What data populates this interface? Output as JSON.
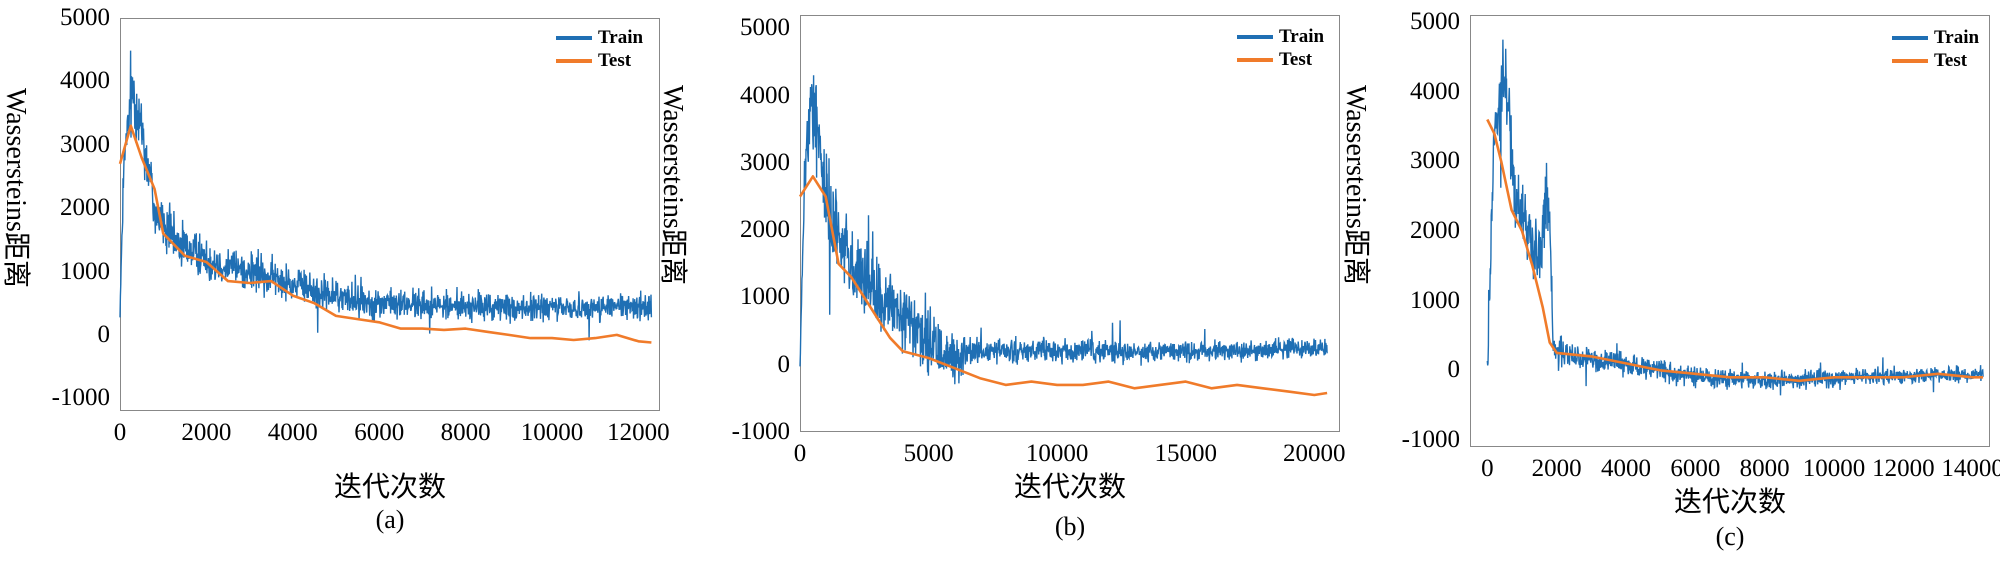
{
  "chart_data": [
    {
      "type": "line",
      "caption": "(a)",
      "xlabel": "迭代次数",
      "ylabel": "Wassersteins距离",
      "xlim": [
        0,
        12500
      ],
      "ylim": [
        -1200,
        5000
      ],
      "xticks": [
        0,
        2000,
        4000,
        6000,
        8000,
        10000,
        12000
      ],
      "yticks": [
        -1000,
        0,
        1000,
        2000,
        3000,
        4000,
        5000
      ],
      "xtick_labels": [
        "0",
        "2000",
        "4000",
        "6000",
        "8000",
        "10000",
        "12000"
      ],
      "ytick_labels": [
        "-1000",
        "0",
        "1000",
        "2000",
        "3000",
        "4000",
        "5000"
      ],
      "legend": "top-right",
      "series": [
        {
          "name": "Train",
          "color": "#1f6fb4",
          "x_end": 12300,
          "mean": [
            [
              0,
              400
            ],
            [
              100,
              2800
            ],
            [
              300,
              3900
            ],
            [
              500,
              3300
            ],
            [
              800,
              2000
            ],
            [
              1200,
              1500
            ],
            [
              2000,
              1200
            ],
            [
              3000,
              1000
            ],
            [
              4000,
              800
            ],
            [
              5000,
              600
            ],
            [
              6000,
              500
            ],
            [
              8000,
              450
            ],
            [
              10000,
              420
            ],
            [
              12300,
              450
            ]
          ],
          "spread": [
            [
              0,
              200
            ],
            [
              300,
              900
            ],
            [
              800,
              700
            ],
            [
              1500,
              500
            ],
            [
              3000,
              450
            ],
            [
              6000,
              350
            ],
            [
              12300,
              300
            ]
          ]
        },
        {
          "name": "Test",
          "color": "#f07b2a",
          "points": [
            [
              0,
              2700
            ],
            [
              250,
              3300
            ],
            [
              500,
              2800
            ],
            [
              800,
              2300
            ],
            [
              1000,
              1600
            ],
            [
              1500,
              1250
            ],
            [
              2000,
              1150
            ],
            [
              2500,
              850
            ],
            [
              3000,
              820
            ],
            [
              3500,
              850
            ],
            [
              4000,
              620
            ],
            [
              4500,
              500
            ],
            [
              5000,
              300
            ],
            [
              5500,
              250
            ],
            [
              6000,
              200
            ],
            [
              6500,
              100
            ],
            [
              7000,
              100
            ],
            [
              7500,
              80
            ],
            [
              8000,
              100
            ],
            [
              8500,
              50
            ],
            [
              9000,
              0
            ],
            [
              9500,
              -50
            ],
            [
              10000,
              -50
            ],
            [
              10500,
              -80
            ],
            [
              11000,
              -50
            ],
            [
              11500,
              0
            ],
            [
              12000,
              -100
            ],
            [
              12300,
              -120
            ]
          ]
        }
      ]
    },
    {
      "type": "line",
      "caption": "(b)",
      "xlabel": "迭代次数",
      "ylabel": "Wassersteins距离",
      "xlim": [
        0,
        21000
      ],
      "ylim": [
        -1000,
        5200
      ],
      "xticks": [
        0,
        5000,
        10000,
        15000,
        20000
      ],
      "yticks": [
        -1000,
        0,
        1000,
        2000,
        3000,
        4000,
        5000
      ],
      "xtick_labels": [
        "0",
        "5000",
        "10000",
        "15000",
        "20000"
      ],
      "ytick_labels": [
        "-1000",
        "0",
        "1000",
        "2000",
        "3000",
        "4000",
        "5000"
      ],
      "legend": "top-right",
      "series": [
        {
          "name": "Train",
          "color": "#1f6fb4",
          "x_end": 20500,
          "mean": [
            [
              0,
              0
            ],
            [
              200,
              3000
            ],
            [
              500,
              4000
            ],
            [
              1000,
              2500
            ],
            [
              2000,
              1500
            ],
            [
              3000,
              1000
            ],
            [
              4000,
              700
            ],
            [
              5000,
              300
            ],
            [
              6000,
              100
            ],
            [
              7000,
              200
            ],
            [
              10000,
              200
            ],
            [
              15000,
              200
            ],
            [
              20500,
              250
            ]
          ],
          "spread": [
            [
              0,
              300
            ],
            [
              500,
              1100
            ],
            [
              1500,
              900
            ],
            [
              4000,
              700
            ],
            [
              6000,
              600
            ],
            [
              7000,
              250
            ],
            [
              20500,
              220
            ]
          ]
        },
        {
          "name": "Test",
          "color": "#f07b2a",
          "points": [
            [
              0,
              2500
            ],
            [
              500,
              2800
            ],
            [
              1000,
              2500
            ],
            [
              1500,
              1500
            ],
            [
              2000,
              1300
            ],
            [
              2500,
              1000
            ],
            [
              3000,
              700
            ],
            [
              3500,
              400
            ],
            [
              4000,
              200
            ],
            [
              5000,
              100
            ],
            [
              6000,
              -50
            ],
            [
              7000,
              -200
            ],
            [
              8000,
              -300
            ],
            [
              9000,
              -250
            ],
            [
              10000,
              -300
            ],
            [
              11000,
              -300
            ],
            [
              12000,
              -250
            ],
            [
              13000,
              -350
            ],
            [
              14000,
              -300
            ],
            [
              15000,
              -250
            ],
            [
              16000,
              -350
            ],
            [
              17000,
              -300
            ],
            [
              18000,
              -350
            ],
            [
              19000,
              -400
            ],
            [
              20000,
              -450
            ],
            [
              20500,
              -420
            ]
          ]
        }
      ]
    },
    {
      "type": "line",
      "caption": "(c)",
      "xlabel": "迭代次数",
      "ylabel": "Wassersteins距离",
      "xlim": [
        -500,
        14500
      ],
      "ylim": [
        -1100,
        5100
      ],
      "xticks": [
        0,
        2000,
        4000,
        6000,
        8000,
        10000,
        12000,
        14000
      ],
      "yticks": [
        -1000,
        0,
        1000,
        2000,
        3000,
        4000,
        5000
      ],
      "xtick_labels": [
        "0",
        "2000",
        "4000",
        "6000",
        "8000",
        "10000",
        "12000",
        "14000"
      ],
      "ytick_labels": [
        "-1000",
        "0",
        "1000",
        "2000",
        "3000",
        "4000",
        "5000"
      ],
      "legend": "top-right",
      "series": [
        {
          "name": "Train",
          "color": "#1f6fb4",
          "x_end": 14300,
          "mean": [
            [
              0,
              0
            ],
            [
              200,
              3500
            ],
            [
              500,
              4300
            ],
            [
              800,
              2500
            ],
            [
              1200,
              2000
            ],
            [
              1500,
              1500
            ],
            [
              1700,
              2500
            ],
            [
              1800,
              2000
            ],
            [
              1900,
              300
            ],
            [
              2500,
              200
            ],
            [
              4000,
              100
            ],
            [
              6000,
              -100
            ],
            [
              8000,
              -150
            ],
            [
              10000,
              -100
            ],
            [
              14300,
              -50
            ]
          ],
          "spread": [
            [
              0,
              300
            ],
            [
              400,
              800
            ],
            [
              1800,
              700
            ],
            [
              1900,
              400
            ],
            [
              2500,
              250
            ],
            [
              6000,
              200
            ],
            [
              14300,
              150
            ]
          ]
        },
        {
          "name": "Test",
          "color": "#f07b2a",
          "points": [
            [
              0,
              3600
            ],
            [
              200,
              3400
            ],
            [
              400,
              3000
            ],
            [
              700,
              2300
            ],
            [
              1000,
              2000
            ],
            [
              1300,
              1500
            ],
            [
              1600,
              900
            ],
            [
              1800,
              400
            ],
            [
              2000,
              250
            ],
            [
              3000,
              200
            ],
            [
              4000,
              100
            ],
            [
              5000,
              0
            ],
            [
              6000,
              -50
            ],
            [
              7000,
              -100
            ],
            [
              8000,
              -100
            ],
            [
              9000,
              -150
            ],
            [
              10000,
              -100
            ],
            [
              11000,
              -100
            ],
            [
              12000,
              -100
            ],
            [
              13000,
              -50
            ],
            [
              14000,
              -100
            ],
            [
              14300,
              -100
            ]
          ]
        }
      ]
    }
  ]
}
